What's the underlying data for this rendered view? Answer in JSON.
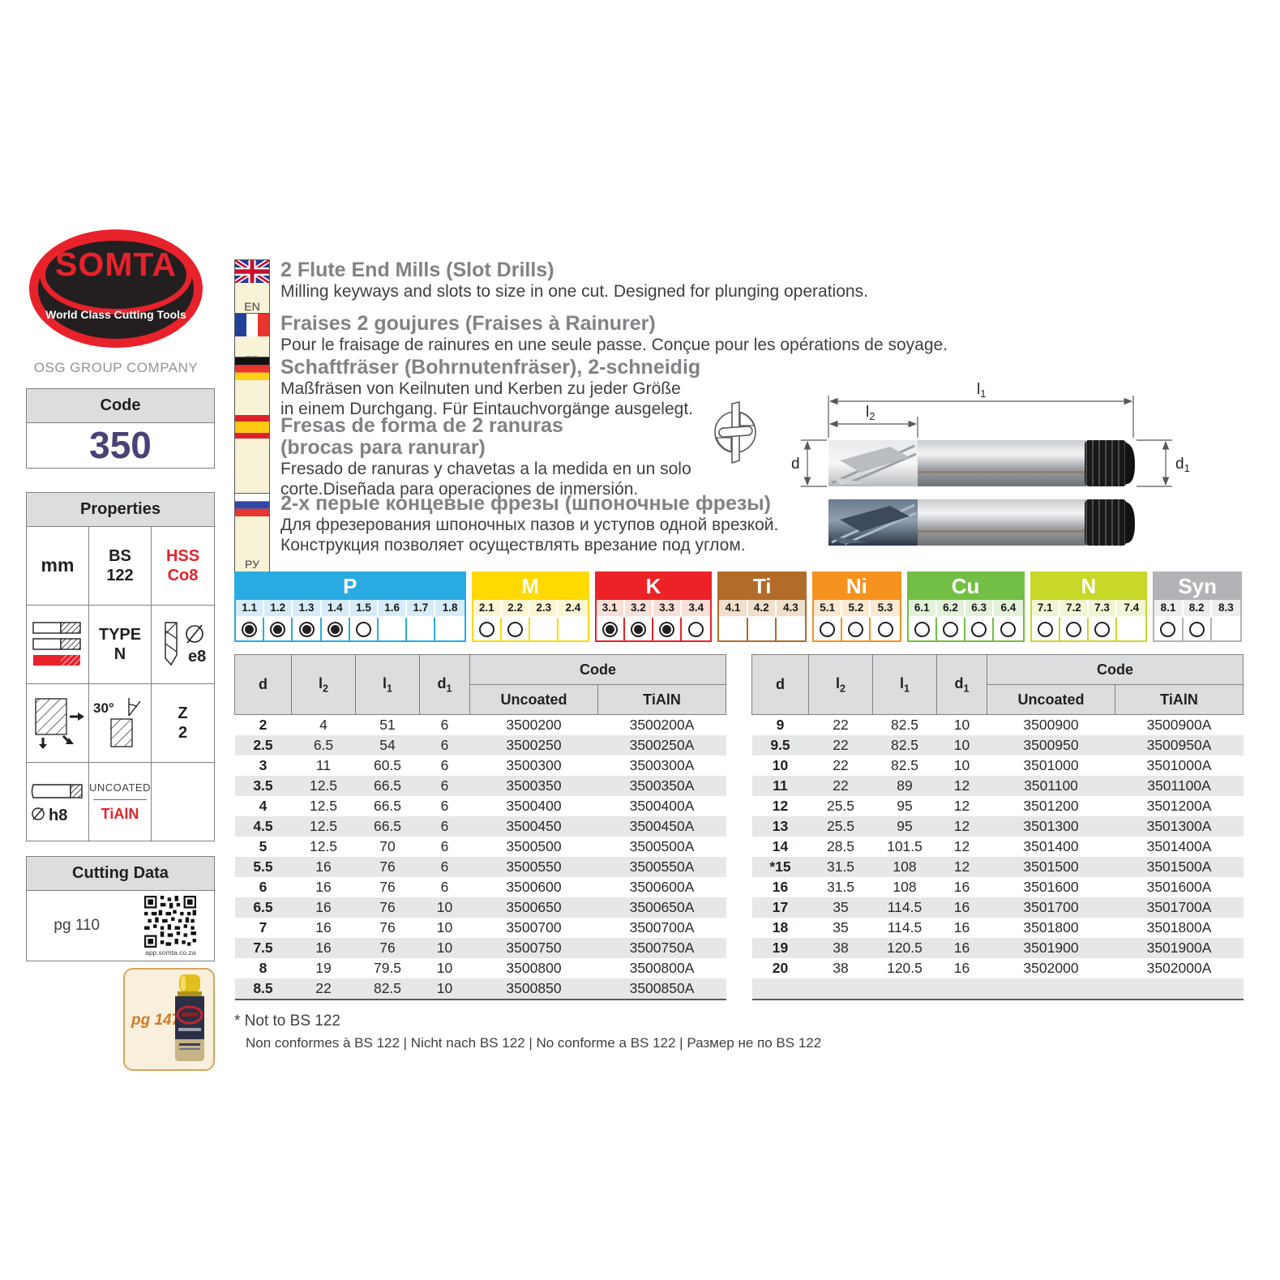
{
  "brand": {
    "name": "SOMTA",
    "tagline": "World Class Cutting Tools",
    "company": "OSG GROUP COMPANY"
  },
  "code_box": {
    "header": "Code",
    "value": "350"
  },
  "properties": {
    "header": "Properties",
    "mm": "mm",
    "bs_line1": "BS",
    "bs_line2": "122",
    "hss_line1": "HSS",
    "hss_line2": "Co8",
    "type_line1": "TYPE",
    "type_line2": "N",
    "e8": "e8",
    "angle": "30°",
    "z_line1": "Z",
    "z_line2": "2",
    "h8": "h8",
    "diameter_symbol": "⌀",
    "coating_top": "UNCOATED",
    "coating_bottom": "TiAlN"
  },
  "cutting": {
    "header": "Cutting Data",
    "page": "pg 110",
    "qr_caption": "app.somta.co.za"
  },
  "promo": {
    "label": "pg 147"
  },
  "languages": [
    {
      "code": "EN",
      "flag": "uk",
      "title": [
        "2 Flute End Mills (Slot Drills)"
      ],
      "body": [
        "Milling keyways and slots to size in one cut. Designed for plunging operations."
      ]
    },
    {
      "code": "FR",
      "flag": "fr",
      "title": [
        "Fraises 2 goujures (Fraises à Rainurer)"
      ],
      "body": [
        "Pour le fraisage de rainures en une seule passe. Conçue pour les opérations de soyage."
      ]
    },
    {
      "code": "DE",
      "flag": "de",
      "title": [
        "Schaftfräser (Bohrnutenfräser), 2-schneidig"
      ],
      "body": [
        "Maßfräsen von Keilnuten und Kerben zu jeder Größe",
        "in einem Durchgang. Für Eintauchvorgänge ausgelegt."
      ]
    },
    {
      "code": "ES",
      "flag": "es",
      "title": [
        "Fresas de forma de 2 ranuras",
        "(brocas para ranurar)"
      ],
      "body": [
        "Fresado de ranuras y chavetas a la medida en un solo",
        "corte.Diseñada para operaciones de inmersión."
      ]
    },
    {
      "code": "РУ",
      "flag": "ru",
      "title": [
        "2-х перые концевые фрезы (шпоночные фрезы)"
      ],
      "body": [
        "Для фрезерования шпоночных пазов и уступов одной врезкой.",
        "Конструкция позволяет осуществлять врезание под углом."
      ]
    }
  ],
  "drawing": {
    "l1": {
      "b": "l",
      "s": "1"
    },
    "l2": {
      "b": "l",
      "s": "2"
    },
    "d": {
      "b": "d",
      "s": ""
    },
    "d1": {
      "b": "d",
      "s": "1"
    }
  },
  "materials": {
    "sections": [
      {
        "name": "P",
        "color": "#29abe2",
        "tint": "#d6ecf9",
        "columns": [
          {
            "label": "1.1",
            "radio": "filled"
          },
          {
            "label": "1.2",
            "radio": "filled"
          },
          {
            "label": "1.3",
            "radio": "filled"
          },
          {
            "label": "1.4",
            "radio": "filled"
          },
          {
            "label": "1.5",
            "radio": "empty"
          },
          {
            "label": "1.6",
            "radio": "none"
          },
          {
            "label": "1.7",
            "radio": "none"
          },
          {
            "label": "1.8",
            "radio": "none"
          }
        ]
      },
      {
        "name": "M",
        "color": "#ffd900",
        "tint": "#fdf6d4",
        "columns": [
          {
            "label": "2.1",
            "radio": "empty"
          },
          {
            "label": "2.2",
            "radio": "empty"
          },
          {
            "label": "2.3",
            "radio": "none"
          },
          {
            "label": "2.4",
            "radio": "none"
          }
        ]
      },
      {
        "name": "K",
        "color": "#ec2227",
        "tint": "#fadfd8",
        "columns": [
          {
            "label": "3.1",
            "radio": "filled"
          },
          {
            "label": "3.2",
            "radio": "filled"
          },
          {
            "label": "3.3",
            "radio": "filled"
          },
          {
            "label": "3.4",
            "radio": "empty"
          }
        ]
      },
      {
        "name": "Ti",
        "color": "#b26b29",
        "tint": "#f0dfc9",
        "columns": [
          {
            "label": "4.1",
            "radio": "none"
          },
          {
            "label": "4.2",
            "radio": "none"
          },
          {
            "label": "4.3",
            "radio": "none"
          }
        ]
      },
      {
        "name": "Ni",
        "color": "#f6921e",
        "tint": "#fde9d1",
        "columns": [
          {
            "label": "5.1",
            "radio": "empty"
          },
          {
            "label": "5.2",
            "radio": "empty"
          },
          {
            "label": "5.3",
            "radio": "empty"
          }
        ]
      },
      {
        "name": "Cu",
        "color": "#71bf44",
        "tint": "#e2f1d9",
        "columns": [
          {
            "label": "6.1",
            "radio": "empty"
          },
          {
            "label": "6.2",
            "radio": "empty"
          },
          {
            "label": "6.3",
            "radio": "empty"
          },
          {
            "label": "6.4",
            "radio": "empty"
          }
        ]
      },
      {
        "name": "N",
        "color": "#c8d829",
        "tint": "#f1f5d4",
        "columns": [
          {
            "label": "7.1",
            "radio": "empty"
          },
          {
            "label": "7.2",
            "radio": "empty"
          },
          {
            "label": "7.3",
            "radio": "empty"
          },
          {
            "label": "7.4",
            "radio": "none"
          }
        ]
      },
      {
        "name": "Syn",
        "color": "#b1b3b6",
        "tint": "#ededee",
        "columns": [
          {
            "label": "8.1",
            "radio": "empty"
          },
          {
            "label": "8.2",
            "radio": "empty"
          },
          {
            "label": "8.3",
            "radio": "none"
          }
        ]
      }
    ]
  },
  "tables": {
    "headers": {
      "cells": [
        {
          "b": "d",
          "s": ""
        },
        {
          "b": "l",
          "s": "2"
        },
        {
          "b": "l",
          "s": "1"
        },
        {
          "b": "d",
          "s": "1"
        }
      ],
      "code": "Code",
      "uncoated": "Uncoated",
      "coated": "TiAlN"
    },
    "left": {
      "rows": [
        [
          "2",
          "4",
          "51",
          "6",
          "3500200",
          "3500200A"
        ],
        [
          "2.5",
          "6.5",
          "54",
          "6",
          "3500250",
          "3500250A"
        ],
        [
          "3",
          "11",
          "60.5",
          "6",
          "3500300",
          "3500300A"
        ],
        [
          "3.5",
          "12.5",
          "66.5",
          "6",
          "3500350",
          "3500350A"
        ],
        [
          "4",
          "12.5",
          "66.5",
          "6",
          "3500400",
          "3500400A"
        ],
        [
          "4.5",
          "12.5",
          "66.5",
          "6",
          "3500450",
          "3500450A"
        ],
        [
          "5",
          "12.5",
          "70",
          "6",
          "3500500",
          "3500500A"
        ],
        [
          "5.5",
          "16",
          "76",
          "6",
          "3500550",
          "3500550A"
        ],
        [
          "6",
          "16",
          "76",
          "6",
          "3500600",
          "3500600A"
        ],
        [
          "6.5",
          "16",
          "76",
          "10",
          "3500650",
          "3500650A"
        ],
        [
          "7",
          "16",
          "76",
          "10",
          "3500700",
          "3500700A"
        ],
        [
          "7.5",
          "16",
          "76",
          "10",
          "3500750",
          "3500750A"
        ],
        [
          "8",
          "19",
          "79.5",
          "10",
          "3500800",
          "3500800A"
        ],
        [
          "8.5",
          "22",
          "82.5",
          "10",
          "3500850",
          "3500850A"
        ]
      ],
      "trailing_empty_row": false
    },
    "right": {
      "rows": [
        [
          "9",
          "22",
          "82.5",
          "10",
          "3500900",
          "3500900A"
        ],
        [
          "9.5",
          "22",
          "82.5",
          "10",
          "3500950",
          "3500950A"
        ],
        [
          "10",
          "22",
          "82.5",
          "10",
          "3501000",
          "3501000A"
        ],
        [
          "11",
          "22",
          "89",
          "12",
          "3501100",
          "3501100A"
        ],
        [
          "12",
          "25.5",
          "95",
          "12",
          "3501200",
          "3501200A"
        ],
        [
          "13",
          "25.5",
          "95",
          "12",
          "3501300",
          "3501300A"
        ],
        [
          "14",
          "28.5",
          "101.5",
          "12",
          "3501400",
          "3501400A"
        ],
        [
          "*15",
          "31.5",
          "108",
          "12",
          "3501500",
          "3501500A"
        ],
        [
          "16",
          "31.5",
          "108",
          "16",
          "3501600",
          "3501600A"
        ],
        [
          "17",
          "35",
          "114.5",
          "16",
          "3501700",
          "3501700A"
        ],
        [
          "18",
          "35",
          "114.5",
          "16",
          "3501800",
          "3501800A"
        ],
        [
          "19",
          "38",
          "120.5",
          "16",
          "3501900",
          "3501900A"
        ],
        [
          "20",
          "38",
          "120.5",
          "16",
          "3502000",
          "3502000A"
        ]
      ],
      "trailing_empty_row": true
    }
  },
  "footnote": {
    "line1": "* Not to BS 122",
    "line2": "Non conformes à BS 122 | Nicht nach BS 122 | No conforme a BS 122 | Размер не по BS 122"
  }
}
